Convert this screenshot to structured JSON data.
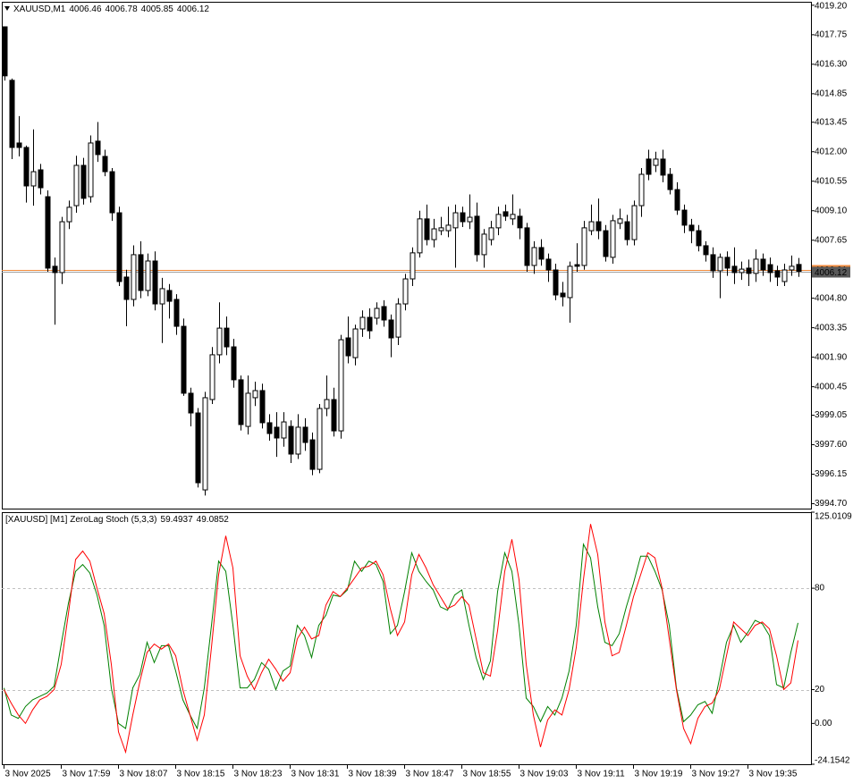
{
  "chart_data": [
    {
      "type": "candlestick",
      "title": "XAUUSD,M1",
      "header_values": [
        4006.46,
        4006.78,
        4005.85,
        4006.12
      ],
      "categories": [
        "3 Nov 2025",
        null,
        null,
        null,
        null,
        null,
        null,
        null,
        "3 Nov 17:59",
        null,
        null,
        null,
        null,
        null,
        null,
        null,
        "3 Nov 18:07",
        null,
        null,
        null,
        null,
        null,
        null,
        null,
        "3 Nov 18:15",
        null,
        null,
        null,
        null,
        null,
        null,
        null,
        "3 Nov 18:23",
        null,
        null,
        null,
        null,
        null,
        null,
        null,
        "3 Nov 18:31",
        null,
        null,
        null,
        null,
        null,
        null,
        null,
        "3 Nov 18:39",
        null,
        null,
        null,
        null,
        null,
        null,
        null,
        "3 Nov 18:47",
        null,
        null,
        null,
        null,
        null,
        null,
        null,
        "3 Nov 18:55",
        null,
        null,
        null,
        null,
        null,
        null,
        null,
        "3 Nov 19:03",
        null,
        null,
        null,
        null,
        null,
        null,
        null,
        "3 Nov 19:11",
        null,
        null,
        null,
        null,
        null,
        null,
        null,
        "3 Nov 19:19",
        null,
        null,
        null,
        null,
        null,
        null,
        null,
        "3 Nov 19:27",
        null,
        null,
        null,
        null,
        null,
        null,
        null,
        "3 Nov 19:35",
        null,
        null,
        null,
        null,
        null,
        null,
        null
      ],
      "open": [
        4018.14,
        4015.51,
        4012.43,
        4012.21,
        4010.32,
        4011.11,
        4009.79,
        4006.37,
        4006.06,
        4008.56,
        4009.35,
        4011.33,
        4009.79,
        4012.52,
        4011.77,
        4011.02,
        4009,
        4005.84,
        4004.74,
        4006.94,
        4005.18,
        4006.63,
        4004.52,
        4005.18,
        4004.74,
        4003.42,
        4000.13,
        3999.16,
        3995.38,
        3999.82,
        4002.02,
        4003.33,
        4002.41,
        4000.79,
        3998.5,
        3999.91,
        4000.26,
        3998.68,
        3998.46,
        3997.93,
        3998.5,
        3997.14,
        3998.46,
        3997.84,
        3996.39,
        3999.38,
        3999.82,
        3998.28,
        4002.85,
        4001.88,
        4003.29,
        4003.86,
        4003.82,
        4004.39,
        4003.73,
        4002.89,
        4004.52,
        4005.75,
        4007.03,
        4008.7,
        4007.68,
        4008.12,
        4008.12,
        4008.26,
        4009,
        4008.56,
        4008.83,
        4006.94,
        4007.68,
        4008.26,
        4009.05,
        4008.7,
        4008.83,
        4008.26,
        4006.41,
        4007.29,
        4006.72,
        4006.19,
        4005.05,
        4004.83,
        4006.45,
        4006.41,
        4008.12,
        4008.56,
        4008.12,
        4006.81,
        4008.48,
        4008.56,
        4007.68,
        4009.35,
        4011.64,
        4011.33,
        4011.64,
        4010.89,
        4010.14,
        4009.13,
        4008.39,
        4008.12,
        4007.38,
        4006.94,
        4006.15,
        4006.81,
        4006.37,
        4006.06,
        4006.28,
        4006.02,
        4006.72,
        4006.45,
        4006.15,
        4005.62,
        4006.19,
        4006.46
      ],
      "high": [
        4018.14,
        4015.6,
        4013.75,
        4012.3,
        4013.1,
        4011.4,
        4010.1,
        4006.8,
        4008.8,
        4009.6,
        4011.8,
        4011.7,
        4012.8,
        4013.46,
        4012.1,
        4011.2,
        4009.3,
        4006.2,
        4007.4,
        4007.6,
        4007,
        4007.1,
        4005.8,
        4005.5,
        4005,
        4003.8,
        4000.4,
        3999.4,
        4000.2,
        4002.4,
        4004.6,
        4003.9,
        4002.8,
        4001,
        4001,
        4000.7,
        4000.6,
        3999.1,
        3999.2,
        3999.2,
        3998.8,
        3999.1,
        3998.9,
        3998.2,
        3999.6,
        4001,
        4000.4,
        4003,
        4003.9,
        4003.5,
        4004.2,
        4004.3,
        4004.6,
        4004.7,
        4004,
        4004.8,
        4006,
        4007.3,
        4009.1,
        4009.4,
        4008.7,
        4008.8,
        4009.3,
        4009.4,
        4009.3,
        4009.9,
        4009.5,
        4008.2,
        4008.6,
        4009.3,
        4009.4,
        4009.9,
        4009.2,
        4008.5,
        4007.6,
        4007.7,
        4007,
        4006.5,
        4005.6,
        4006.6,
        4007.5,
        4008.6,
        4009.4,
        4009.7,
        4008.4,
        4008.9,
        4009.2,
        4008.9,
        4009.6,
        4011.2,
        4012.1,
        4012,
        4012.1,
        4011.2,
        4010.5,
        4009.4,
        4008.7,
        4008.4,
        4007.6,
        4007.3,
        4007,
        4007.1,
        4007.3,
        4006.6,
        4006.7,
        4007.2,
        4007,
        4006.8,
        4006.4,
        4006.5,
        4006.9,
        4006.78
      ],
      "low": [
        4015.5,
        4011.64,
        4011.77,
        4009.5,
        4009.35,
        4009.9,
        4006.1,
        4003.5,
        4005.5,
        4008.2,
        4009,
        4009.4,
        4009.5,
        4011.5,
        4010.8,
        4008.6,
        4005.4,
        4003.42,
        4004.4,
        4004.8,
        4004.9,
        4004.2,
        4002.6,
        4003.8,
        4003,
        4000,
        3998.5,
        3995.5,
        3995.1,
        3999.6,
        4001.6,
        4002,
        4000.4,
        3998.3,
        3998.1,
        3999.5,
        3998.4,
        3997.8,
        3997,
        3997.5,
        3996.7,
        3996.9,
        3997.3,
        3996.1,
        3996.2,
        3999,
        3998,
        3997.9,
        4001.6,
        4001.5,
        4002.9,
        4002.8,
        4003.5,
        4003.4,
        4001.9,
        4002.5,
        4004.2,
        4005.4,
        4006.8,
        4007.4,
        4007.3,
        4007.9,
        4007.8,
        4006.3,
        4008.3,
        4008.2,
        4006.6,
        4006.3,
        4007.4,
        4007.9,
        4008.6,
        4008.4,
        4007.7,
        4006.1,
        4006,
        4006.4,
        4005.6,
        4004.7,
        4004.4,
        4003.6,
        4006.1,
        4006.2,
        4007.9,
        4007.7,
        4006.6,
        4006.5,
        4008.2,
        4007.4,
        4007.4,
        4008.8,
        4010.6,
        4011,
        4010.5,
        4009.9,
        4008.9,
        4008,
        4007.5,
        4007.1,
        4006.6,
        4005.8,
        4004.8,
        4005.9,
        4005.5,
        4005.7,
        4005.4,
        4005.6,
        4005.9,
        4005.6,
        4005.4,
        4005.4,
        4005.9,
        4005.85
      ],
      "close": [
        4015.73,
        4012.21,
        4012.21,
        4010.32,
        4011.02,
        4010.23,
        4006.28,
        4006.06,
        4008.56,
        4009.27,
        4011.33,
        4009.71,
        4012.43,
        4011.86,
        4011.02,
        4009,
        4005.62,
        4004.74,
        4006.94,
        4005.18,
        4006.63,
        4004.52,
        4005.27,
        4004.65,
        4003.42,
        4000.13,
        3999.16,
        3995.73,
        3999.91,
        4002.02,
        4003.33,
        4002.41,
        4000.79,
        3998.59,
        4000.13,
        4000.26,
        3998.68,
        3998.15,
        3997.93,
        3998.72,
        3997.14,
        3998.46,
        3997.71,
        3996.39,
        3999.38,
        3999.82,
        3998.28,
        4002.76,
        4001.97,
        4003.29,
        4003.86,
        4003.2,
        4004.3,
        4003.73,
        4002.85,
        4004.52,
        4005.75,
        4007.03,
        4008.7,
        4007.68,
        4008.21,
        4008.26,
        4008.39,
        4009,
        4008.56,
        4008.78,
        4006.94,
        4007.95,
        4008.26,
        4008.92,
        4008.83,
        4008.92,
        4008.26,
        4006.41,
        4007.29,
        4006.72,
        4006.19,
        4004.96,
        4004.87,
        4006.37,
        4006.37,
        4008.26,
        4008.56,
        4008.12,
        4006.85,
        4008.61,
        4008.7,
        4007.68,
        4009.35,
        4010.89,
        4010.89,
        4011.64,
        4010.85,
        4010.14,
        4009.13,
        4008.39,
        4008.12,
        4007.38,
        4006.94,
        4006.15,
        4006.81,
        4006.28,
        4006.06,
        4006.23,
        4006.02,
        4006.72,
        4006.19,
        4006.06,
        4005.84,
        4006.19,
        4006.37,
        4006.12
      ],
      "up_color": "#ffffff",
      "down_color": "#000000",
      "bid_price": 4006.12,
      "bid_color": "#a0a0a0",
      "ask_price": 4006.21,
      "ask_color": "#f08a3c",
      "ylim": [
        3994.46,
        4019.37
      ],
      "yticks": [
        {
          "value": 4019.2,
          "label": "4019.20"
        },
        4017.75,
        {
          "value": 4016.3,
          "label": "4016.30"
        },
        4014.85,
        4013.45,
        {
          "value": 4012,
          "label": "4012.00"
        },
        4010.55,
        {
          "value": 4009.1,
          "label": "4009.10"
        },
        4007.65,
        {
          "value": 4004.8,
          "label": "4004.80"
        },
        4003.35,
        {
          "value": 4001.9,
          "label": "4001.90"
        },
        4000.45,
        3999.05,
        {
          "value": 3997.6,
          "label": "3997.60"
        },
        3996.15,
        {
          "value": 3994.7,
          "label": "3994.70"
        }
      ]
    },
    {
      "type": "line",
      "title": "[XAUUSD] [M1] ZeroLag Stoch (5,3,3)",
      "header_values": [
        59.4937,
        49.0852
      ],
      "series": [
        {
          "color": "#008000",
          "values": [
            21,
            5,
            3,
            10,
            14,
            16,
            18,
            22,
            47,
            71,
            90,
            94,
            89,
            76,
            58,
            21,
            0,
            -3,
            21,
            29,
            48,
            36,
            46,
            46,
            31,
            14,
            5,
            -3,
            21,
            58,
            96,
            90,
            58,
            21,
            21,
            26,
            36,
            32,
            20,
            31,
            34,
            58,
            52,
            39,
            58,
            64,
            76,
            75,
            79,
            96,
            90,
            96,
            94,
            84,
            53,
            58,
            78,
            101,
            90,
            84,
            79,
            69,
            67,
            76,
            79,
            58,
            39,
            26,
            37,
            78,
            101,
            90,
            58,
            15,
            10,
            1,
            10,
            5,
            15,
            31,
            58,
            106,
            98,
            69,
            48,
            46,
            53,
            69,
            83,
            99,
            99,
            90,
            79,
            58,
            21,
            1,
            5,
            11,
            13,
            6,
            26,
            48,
            58,
            48,
            54,
            61,
            59,
            52,
            23,
            21,
            42,
            59.4937
          ]
        },
        {
          "color": "#ff0000",
          "values": [
            20,
            12,
            5,
            0,
            8,
            14,
            16,
            20,
            35,
            65,
            97,
            102,
            96,
            80,
            65,
            35,
            -5,
            -17,
            5,
            25,
            42,
            47,
            44,
            47,
            40,
            20,
            5,
            -10,
            5,
            45,
            88,
            111,
            92,
            40,
            28,
            20,
            30,
            38,
            32,
            25,
            30,
            50,
            57,
            50,
            52,
            70,
            78,
            75,
            80,
            86,
            92,
            93,
            96,
            88,
            68,
            52,
            60,
            88,
            100,
            92,
            82,
            75,
            68,
            70,
            75,
            70,
            50,
            30,
            28,
            55,
            90,
            109,
            85,
            35,
            5,
            -14,
            2,
            8,
            5,
            20,
            45,
            85,
            118,
            100,
            60,
            40,
            42,
            58,
            75,
            88,
            101,
            98,
            80,
            50,
            20,
            -3,
            -12,
            3,
            10,
            12,
            20,
            40,
            60,
            56,
            52,
            58,
            60,
            56,
            40,
            20,
            24,
            49.0852
          ]
        }
      ],
      "levels": [
        80,
        20
      ],
      "level_color": "#c0c0c0",
      "ylim": [
        -24.1542,
        125.0109
      ],
      "yticks": [
        125.0109,
        80,
        20,
        {
          "value": 0,
          "label": "0.00"
        },
        -24.1542
      ]
    }
  ]
}
